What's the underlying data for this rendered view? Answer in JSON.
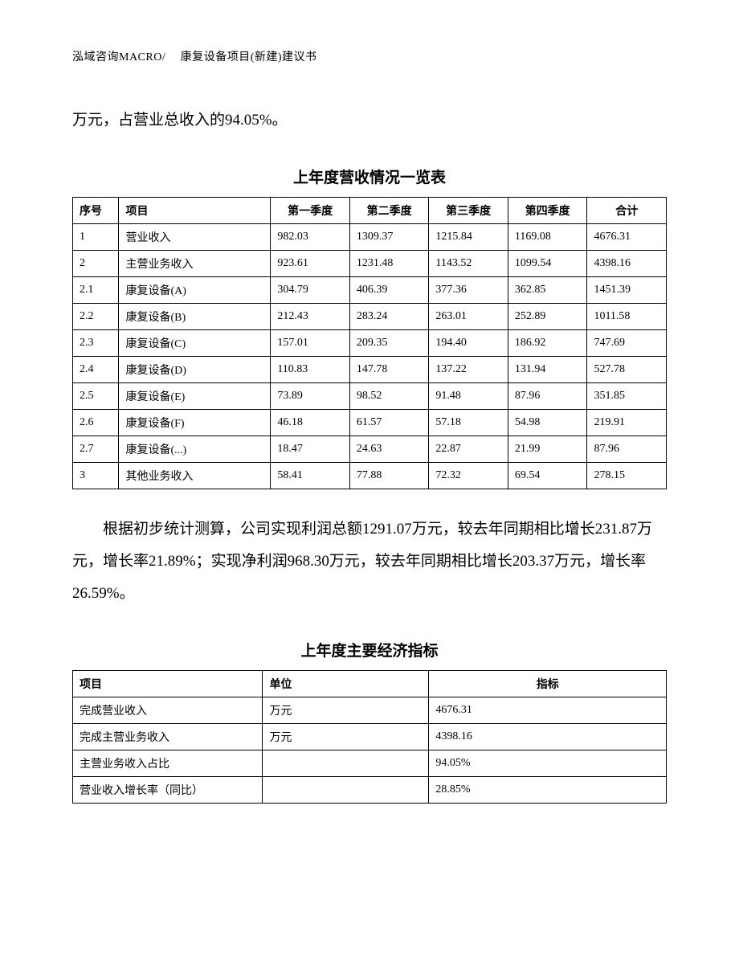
{
  "header": "泓域咨询MACRO/　 康复设备项目(新建)建议书",
  "paragraph_top": "万元，占营业总收入的94.05%。",
  "revenue_table": {
    "title": "上年度营收情况一览表",
    "columns": [
      "序号",
      "项目",
      "第一季度",
      "第二季度",
      "第三季度",
      "第四季度",
      "合计"
    ],
    "rows": [
      [
        "1",
        "营业收入",
        "982.03",
        "1309.37",
        "1215.84",
        "1169.08",
        "4676.31"
      ],
      [
        "2",
        "主营业务收入",
        "923.61",
        "1231.48",
        "1143.52",
        "1099.54",
        "4398.16"
      ],
      [
        "2.1",
        "康复设备(A)",
        "304.79",
        "406.39",
        "377.36",
        "362.85",
        "1451.39"
      ],
      [
        "2.2",
        "康复设备(B)",
        "212.43",
        "283.24",
        "263.01",
        "252.89",
        "1011.58"
      ],
      [
        "2.3",
        "康复设备(C)",
        "157.01",
        "209.35",
        "194.40",
        "186.92",
        "747.69"
      ],
      [
        "2.4",
        "康复设备(D)",
        "110.83",
        "147.78",
        "137.22",
        "131.94",
        "527.78"
      ],
      [
        "2.5",
        "康复设备(E)",
        "73.89",
        "98.52",
        "91.48",
        "87.96",
        "351.85"
      ],
      [
        "2.6",
        "康复设备(F)",
        "46.18",
        "61.57",
        "57.18",
        "54.98",
        "219.91"
      ],
      [
        "2.7",
        "康复设备(...)",
        "18.47",
        "24.63",
        "22.87",
        "21.99",
        "87.96"
      ],
      [
        "3",
        "其他业务收入",
        "58.41",
        "77.88",
        "72.32",
        "69.54",
        "278.15"
      ]
    ]
  },
  "paragraph_mid": "根据初步统计测算，公司实现利润总额1291.07万元，较去年同期相比增长231.87万元，增长率21.89%；实现净利润968.30万元，较去年同期相比增长203.37万元，增长率26.59%。",
  "indicator_table": {
    "title": "上年度主要经济指标",
    "columns": [
      "项目",
      "单位",
      "指标"
    ],
    "rows": [
      [
        "完成营业收入",
        "万元",
        "4676.31"
      ],
      [
        "完成主营业务收入",
        "万元",
        "4398.16"
      ],
      [
        "主营业务收入占比",
        "",
        "94.05%"
      ],
      [
        "营业收入增长率（同比）",
        "",
        "28.85%"
      ]
    ]
  }
}
